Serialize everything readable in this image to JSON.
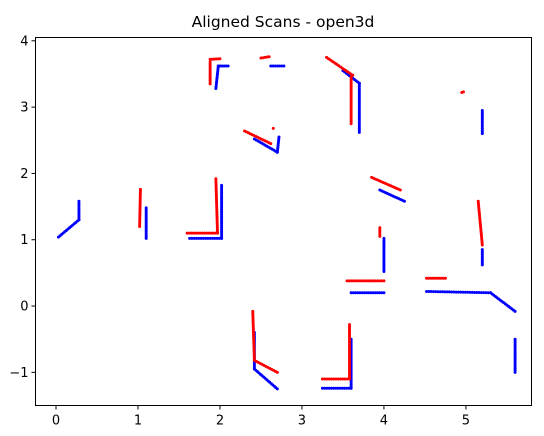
{
  "chart_data": {
    "type": "scatter",
    "title": "Aligned Scans - open3d",
    "xlabel": "",
    "ylabel": "",
    "xlim": [
      -0.25,
      5.8
    ],
    "ylim": [
      -1.5,
      4.05
    ],
    "x_ticks": [
      0,
      1,
      2,
      3,
      4,
      5
    ],
    "y_ticks": [
      -1,
      0,
      1,
      2,
      3,
      4
    ],
    "grid": false,
    "legend": "none",
    "series": [
      {
        "color": "#0000ff",
        "segments": [
          [
            [
              0.03,
              1.04
            ],
            [
              0.28,
              1.3
            ]
          ],
          [
            [
              0.28,
              1.3
            ],
            [
              0.28,
              1.58
            ]
          ],
          [
            [
              1.1,
              1.02
            ],
            [
              1.1,
              1.48
            ]
          ],
          [
            [
              1.63,
              1.02
            ],
            [
              2.02,
              1.02
            ]
          ],
          [
            [
              2.02,
              1.02
            ],
            [
              2.02,
              1.82
            ]
          ],
          [
            [
              1.95,
              3.28
            ],
            [
              1.98,
              3.62
            ]
          ],
          [
            [
              1.98,
              3.62
            ],
            [
              2.1,
              3.62
            ]
          ],
          [
            [
              2.62,
              3.62
            ],
            [
              2.78,
              3.62
            ]
          ],
          [
            [
              2.42,
              2.52
            ],
            [
              2.7,
              2.32
            ]
          ],
          [
            [
              2.7,
              2.32
            ],
            [
              2.72,
              2.55
            ]
          ],
          [
            [
              3.5,
              3.55
            ],
            [
              3.7,
              3.36
            ]
          ],
          [
            [
              3.7,
              3.36
            ],
            [
              3.7,
              2.62
            ]
          ],
          [
            [
              3.95,
              1.75
            ],
            [
              4.25,
              1.58
            ]
          ],
          [
            [
              4.0,
              0.52
            ],
            [
              4.0,
              1.02
            ]
          ],
          [
            [
              3.6,
              0.2
            ],
            [
              4.0,
              0.2
            ]
          ],
          [
            [
              2.42,
              -0.4
            ],
            [
              2.42,
              -0.95
            ]
          ],
          [
            [
              2.42,
              -0.95
            ],
            [
              2.7,
              -1.25
            ]
          ],
          [
            [
              3.25,
              -1.24
            ],
            [
              3.6,
              -1.24
            ]
          ],
          [
            [
              3.6,
              -0.5
            ],
            [
              3.6,
              -1.24
            ]
          ],
          [
            [
              4.52,
              0.22
            ],
            [
              5.3,
              0.2
            ]
          ],
          [
            [
              5.3,
              0.2
            ],
            [
              5.6,
              -0.08
            ]
          ],
          [
            [
              5.2,
              0.62
            ],
            [
              5.2,
              0.85
            ]
          ],
          [
            [
              5.2,
              2.6
            ],
            [
              5.2,
              2.95
            ]
          ],
          [
            [
              5.6,
              -1.0
            ],
            [
              5.6,
              -0.5
            ]
          ]
        ],
        "points": []
      },
      {
        "color": "#ff0000",
        "segments": [
          [
            [
              1.02,
              1.2
            ],
            [
              1.03,
              1.76
            ]
          ],
          [
            [
              1.6,
              1.1
            ],
            [
              1.97,
              1.1
            ]
          ],
          [
            [
              1.97,
              1.1
            ],
            [
              1.95,
              1.92
            ]
          ],
          [
            [
              1.88,
              3.72
            ],
            [
              2.0,
              3.73
            ]
          ],
          [
            [
              1.88,
              3.35
            ],
            [
              1.88,
              3.68
            ]
          ],
          [
            [
              2.5,
              3.74
            ],
            [
              2.6,
              3.76
            ]
          ],
          [
            [
              2.3,
              2.64
            ],
            [
              2.62,
              2.45
            ]
          ],
          [
            [
              3.3,
              3.75
            ],
            [
              3.62,
              3.48
            ]
          ],
          [
            [
              3.6,
              2.75
            ],
            [
              3.6,
              3.45
            ]
          ],
          [
            [
              3.85,
              1.94
            ],
            [
              4.2,
              1.75
            ]
          ],
          [
            [
              3.95,
              1.05
            ],
            [
              3.95,
              1.18
            ]
          ],
          [
            [
              3.55,
              0.38
            ],
            [
              4.0,
              0.38
            ]
          ],
          [
            [
              2.4,
              -0.08
            ],
            [
              2.42,
              -0.82
            ]
          ],
          [
            [
              2.42,
              -0.82
            ],
            [
              2.7,
              -1.0
            ]
          ],
          [
            [
              3.25,
              -1.1
            ],
            [
              3.58,
              -1.1
            ]
          ],
          [
            [
              3.58,
              -0.28
            ],
            [
              3.58,
              -1.08
            ]
          ],
          [
            [
              4.52,
              0.42
            ],
            [
              4.75,
              0.42
            ]
          ],
          [
            [
              5.15,
              1.58
            ],
            [
              5.2,
              0.92
            ]
          ]
        ],
        "points": [
          [
            4.95,
            3.22
          ],
          [
            4.97,
            3.23
          ],
          [
            2.65,
            2.68
          ]
        ]
      }
    ]
  }
}
